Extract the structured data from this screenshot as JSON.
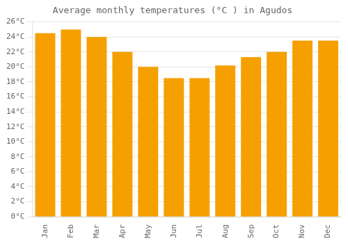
{
  "chart_data": {
    "type": "bar",
    "title": "Average monthly temperatures (°C ) in Agudos",
    "categories": [
      "Jan",
      "Feb",
      "Mar",
      "Apr",
      "May",
      "Jun",
      "Jul",
      "Aug",
      "Sep",
      "Oct",
      "Nov",
      "Dec"
    ],
    "values": [
      24.5,
      25.0,
      24.0,
      22.0,
      20.0,
      18.5,
      18.5,
      20.2,
      21.3,
      22.0,
      23.5,
      23.5
    ],
    "color": "#F5A000",
    "ylim": [
      0,
      26
    ],
    "yticks": [
      {
        "value": 0,
        "label": "0°C"
      },
      {
        "value": 2,
        "label": "2°C"
      },
      {
        "value": 4,
        "label": "4°C"
      },
      {
        "value": 6,
        "label": "6°C"
      },
      {
        "value": 8,
        "label": "8°C"
      },
      {
        "value": 10,
        "label": "10°C"
      },
      {
        "value": 12,
        "label": "12°C"
      },
      {
        "value": 14,
        "label": "14°C"
      },
      {
        "value": 16,
        "label": "16°C"
      },
      {
        "value": 18,
        "label": "18°C"
      },
      {
        "value": 20,
        "label": "20°C"
      },
      {
        "value": 22,
        "label": "22°C"
      },
      {
        "value": 24,
        "label": "24°C"
      },
      {
        "value": 26,
        "label": "26°C"
      }
    ],
    "grid": "y"
  }
}
